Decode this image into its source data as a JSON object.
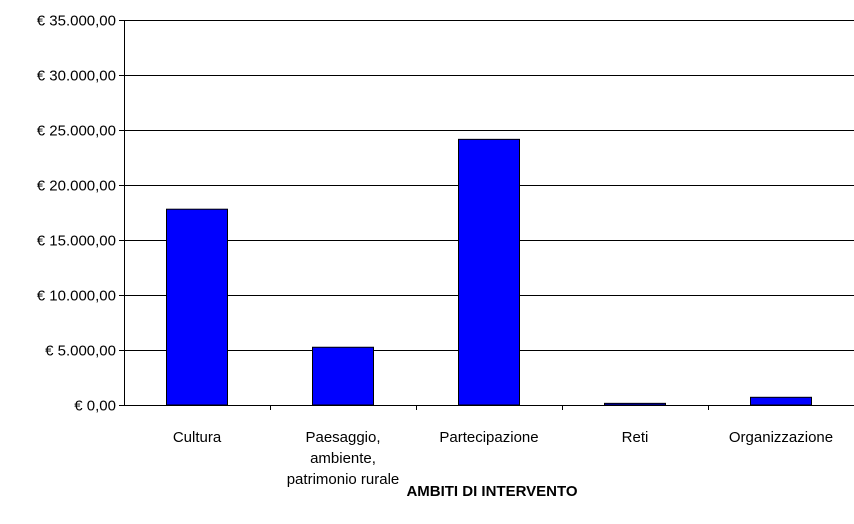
{
  "chart_data": {
    "type": "bar",
    "title": "",
    "xlabel": "AMBITI DI INTERVENTO",
    "ylabel": "",
    "categories": [
      [
        "Cultura"
      ],
      [
        "Paesaggio,",
        "ambiente,",
        "patrimonio rurale"
      ],
      [
        "Partecipazione"
      ],
      [
        "Reti"
      ],
      [
        "Organizzazione"
      ]
    ],
    "values": [
      17800,
      5250,
      24150,
      150,
      700
    ],
    "ylim": [
      0,
      35000
    ],
    "yticks": [
      {
        "value": 0,
        "label": "€ 0,00"
      },
      {
        "value": 5000,
        "label": "€ 5.000,00"
      },
      {
        "value": 10000,
        "label": "€ 10.000,00"
      },
      {
        "value": 15000,
        "label": "€ 15.000,00"
      },
      {
        "value": 20000,
        "label": "€ 20.000,00"
      },
      {
        "value": 25000,
        "label": "€ 25.000,00"
      },
      {
        "value": 30000,
        "label": "€ 30.000,00"
      },
      {
        "value": 35000,
        "label": "€ 35.000,00"
      }
    ],
    "grid": true,
    "legend": "none",
    "bar_color": "#0000ff"
  }
}
